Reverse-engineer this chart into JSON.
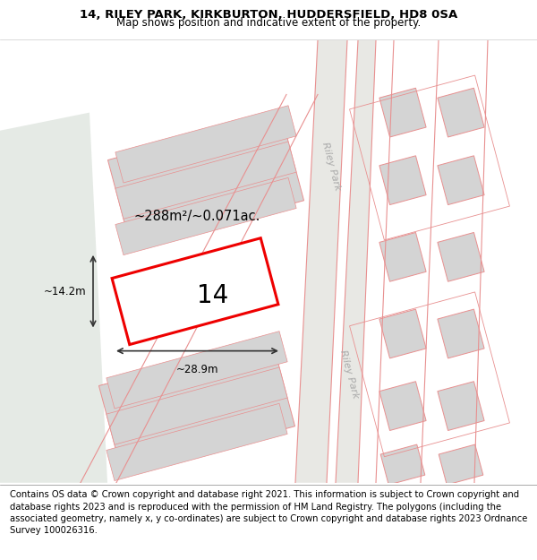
{
  "title_line1": "14, RILEY PARK, KIRKBURTON, HUDDERSFIELD, HD8 0SA",
  "title_line2": "Map shows position and indicative extent of the property.",
  "footer_text": "Contains OS data © Crown copyright and database right 2021. This information is subject to Crown copyright and database rights 2023 and is reproduced with the permission of HM Land Registry. The polygons (including the associated geometry, namely x, y co-ordinates) are subject to Crown copyright and database rights 2023 Ordnance Survey 100026316.",
  "map_bg": "#f5f5f0",
  "green_area_color": "#e5eae5",
  "parcel_fill": "#d4d4d4",
  "parcel_stroke": "#e89090",
  "highlight_fill": "#ffffff",
  "highlight_stroke": "#ee0000",
  "road_label1": "Riley Park",
  "road_label2": "Riley Park",
  "plot_number": "14",
  "area_label": "~288m²/~0.071ac.",
  "width_label": "~28.9m",
  "height_label": "~14.2m",
  "title_fontsize": 9.5,
  "subtitle_fontsize": 8.5,
  "footer_fontsize": 7.2
}
